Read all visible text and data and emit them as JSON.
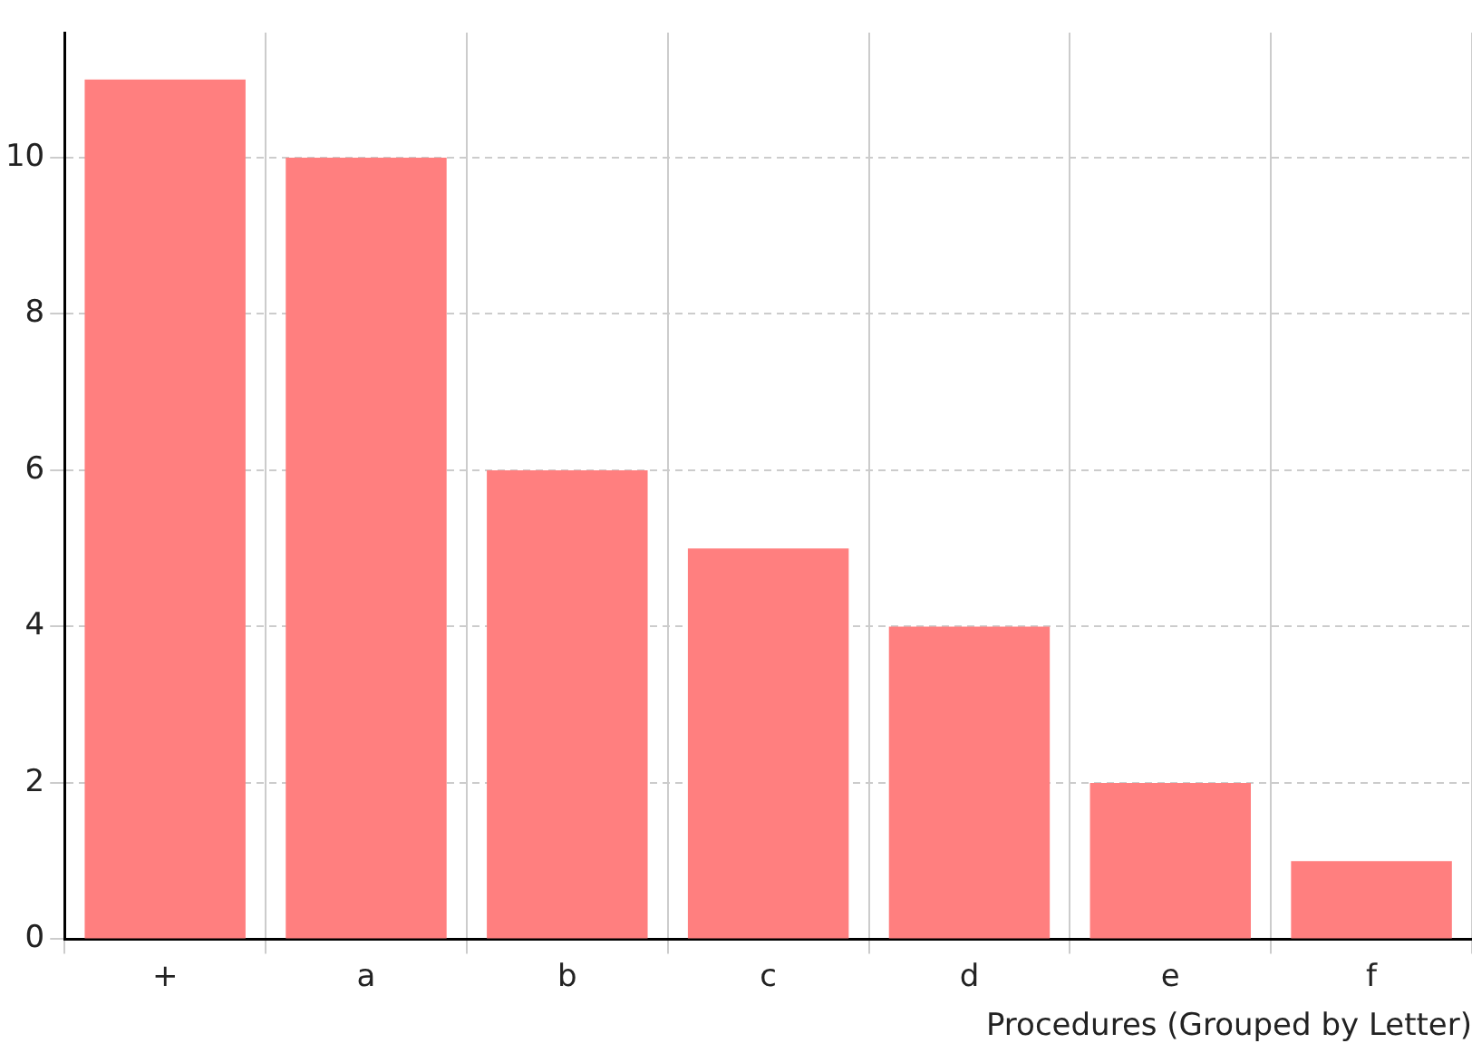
{
  "chart_data": {
    "type": "bar",
    "xlabel": "Procedures (Grouped by Letter)",
    "categories": [
      "+",
      "a",
      "b",
      "c",
      "d",
      "e",
      "f"
    ],
    "values": [
      11,
      10,
      6,
      5,
      4,
      2,
      1
    ],
    "color": "#ff7f7f",
    "ylim": [
      0,
      11.6
    ],
    "yticks": [
      0,
      2,
      4,
      6,
      8,
      10
    ],
    "grid": true
  }
}
